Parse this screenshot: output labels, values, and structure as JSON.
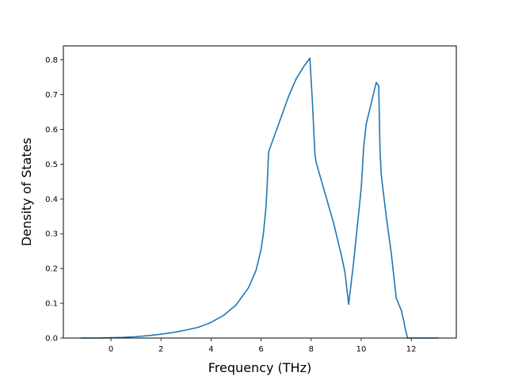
{
  "chart_data": {
    "type": "line",
    "title": "",
    "xlabel": "Frequency (THz)",
    "ylabel": "Density of States",
    "xlim": [
      -1.9,
      13.8
    ],
    "ylim": [
      0.0,
      0.84
    ],
    "xticks": [
      0,
      2,
      4,
      6,
      8,
      10,
      12
    ],
    "xtick_labels": [
      "0",
      "2",
      "4",
      "6",
      "8",
      "10",
      "12"
    ],
    "yticks": [
      0.0,
      0.1,
      0.2,
      0.3,
      0.4,
      0.5,
      0.6,
      0.7,
      0.8
    ],
    "ytick_labels": [
      "0.0",
      "0.1",
      "0.2",
      "0.3",
      "0.4",
      "0.5",
      "0.6",
      "0.7",
      "0.8"
    ],
    "grid": false,
    "line_color": "#1f77b4",
    "series": [
      {
        "x": [
          -1.2,
          -0.5,
          0,
          0.5,
          1,
          1.5,
          2,
          2.5,
          3,
          3.5,
          4,
          4.5,
          5,
          5.5,
          5.8,
          6,
          6.1,
          6.2,
          6.25,
          6.3,
          6.5,
          6.8,
          7.1,
          7.4,
          7.7,
          7.95,
          8.05,
          8.15,
          8.2,
          8.3,
          8.6,
          8.9,
          9.2,
          9.35,
          9.5,
          9.7,
          10.0,
          10.1,
          10.2,
          10.4,
          10.6,
          10.7,
          10.75,
          10.8,
          11.0,
          11.2,
          11.4,
          11.6,
          11.7,
          11.75,
          11.85,
          13.1
        ],
        "y": [
          0,
          0,
          0.001,
          0.002,
          0.004,
          0.007,
          0.011,
          0.016,
          0.023,
          0.031,
          0.045,
          0.065,
          0.095,
          0.145,
          0.195,
          0.255,
          0.305,
          0.38,
          0.45,
          0.535,
          0.575,
          0.635,
          0.695,
          0.745,
          0.78,
          0.805,
          0.68,
          0.53,
          0.505,
          0.48,
          0.405,
          0.33,
          0.24,
          0.19,
          0.097,
          0.22,
          0.43,
          0.55,
          0.615,
          0.675,
          0.735,
          0.725,
          0.545,
          0.47,
          0.35,
          0.245,
          0.115,
          0.08,
          0.05,
          0.03,
          0.0,
          0.0
        ]
      }
    ]
  }
}
